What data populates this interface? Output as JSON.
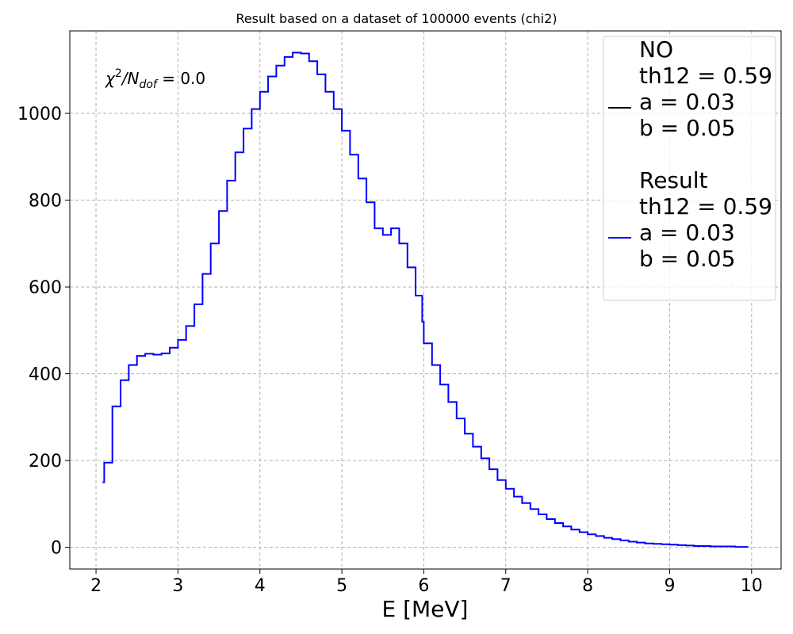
{
  "chart_data": {
    "type": "line",
    "title": "Result based on a dataset of 100000 events (chi2)",
    "xlabel": "E [MeV]",
    "ylabel": "",
    "xlim": [
      1.68,
      10.36
    ],
    "ylim": [
      -50,
      1190
    ],
    "xticks": [
      2,
      3,
      4,
      5,
      6,
      7,
      8,
      9,
      10
    ],
    "yticks": [
      0,
      200,
      400,
      600,
      800,
      1000
    ],
    "grid": true,
    "legend_placement": "top-right",
    "annotation": {
      "chi": "χ",
      "sup": "2",
      "mid": "/N",
      "sub": "dof",
      "tail": " = 0.0"
    },
    "series": [
      {
        "name": "NO",
        "legend_lines": [
          "NO",
          "th12 = 0.59",
          "a = 0.03",
          "b = 0.05"
        ],
        "color": "#000000",
        "x": [],
        "values": []
      },
      {
        "name": "Result",
        "legend_lines": [
          "Result",
          "th12 = 0.59",
          "a = 0.03",
          "b = 0.05"
        ],
        "color": "#0000ff",
        "x": [
          2.08,
          2.1,
          2.2,
          2.3,
          2.4,
          2.5,
          2.6,
          2.7,
          2.8,
          2.9,
          3.0,
          3.1,
          3.2,
          3.3,
          3.4,
          3.5,
          3.6,
          3.7,
          3.8,
          3.9,
          4.0,
          4.1,
          4.2,
          4.3,
          4.4,
          4.5,
          4.6,
          4.7,
          4.8,
          4.9,
          5.0,
          5.1,
          5.2,
          5.3,
          5.4,
          5.5,
          5.6,
          5.7,
          5.8,
          5.9,
          5.98,
          6.0,
          6.1,
          6.2,
          6.3,
          6.4,
          6.5,
          6.6,
          6.7,
          6.8,
          6.9,
          7.0,
          7.1,
          7.2,
          7.3,
          7.4,
          7.5,
          7.6,
          7.7,
          7.8,
          7.9,
          8.0,
          8.1,
          8.2,
          8.3,
          8.4,
          8.5,
          8.6,
          8.7,
          8.8,
          8.9,
          9.0,
          9.1,
          9.2,
          9.3,
          9.4,
          9.5,
          9.6,
          9.7,
          9.8,
          9.9,
          9.95
        ],
        "values": [
          150,
          195,
          325,
          385,
          420,
          441,
          446,
          444,
          447,
          460,
          478,
          510,
          560,
          630,
          700,
          775,
          845,
          910,
          965,
          1010,
          1050,
          1085,
          1110,
          1130,
          1140,
          1138,
          1120,
          1090,
          1050,
          1010,
          960,
          905,
          850,
          795,
          735,
          720,
          735,
          700,
          645,
          580,
          520,
          470,
          420,
          375,
          335,
          297,
          262,
          232,
          205,
          180,
          155,
          135,
          117,
          102,
          88,
          76,
          65,
          56,
          48,
          41,
          35,
          30,
          26,
          22,
          19,
          16,
          13,
          11,
          9,
          8,
          7,
          6,
          5,
          4,
          3,
          3,
          2,
          2,
          2,
          1,
          1,
          0
        ]
      }
    ]
  }
}
